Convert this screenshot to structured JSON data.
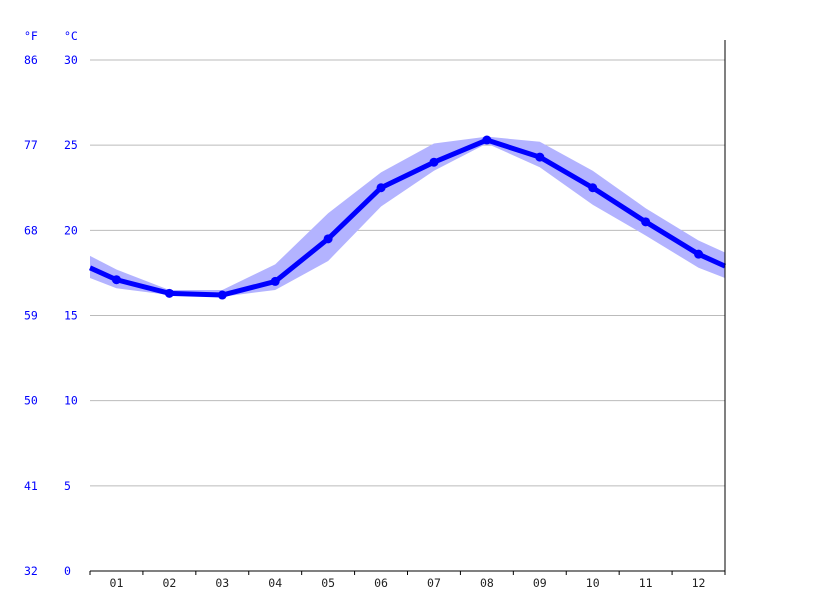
{
  "chart_data": {
    "type": "line",
    "title": "",
    "xlabel": "",
    "ylabel": "",
    "y_units": {
      "left": "°F",
      "right": "°C"
    },
    "categories": [
      "01",
      "02",
      "03",
      "04",
      "05",
      "06",
      "07",
      "08",
      "09",
      "10",
      "11",
      "12"
    ],
    "y_ticks_c": [
      0,
      5,
      10,
      15,
      20,
      25,
      30
    ],
    "y_ticks_f": [
      "32",
      "41",
      "50",
      "59",
      "68",
      "77",
      "86"
    ],
    "ylim": [
      0,
      30
    ],
    "grid": true,
    "colors": {
      "line": "#0000ff",
      "band": "#b3b3ff",
      "grid": "#bbbbbb",
      "axis": "#000000",
      "y_labels": "#0000ff"
    },
    "series": [
      {
        "values": [
          17.1,
          16.3,
          16.2,
          17.0,
          19.5,
          22.5,
          24.0,
          25.3,
          24.3,
          22.5,
          20.5,
          18.6
        ]
      }
    ],
    "band_upper": [
      17.7,
      16.5,
      16.5,
      18.0,
      21.0,
      23.4,
      25.1,
      25.5,
      25.2,
      23.5,
      21.3,
      19.4
    ],
    "band_lower": [
      16.6,
      16.2,
      16.1,
      16.5,
      18.2,
      21.4,
      23.5,
      25.1,
      23.7,
      21.5,
      19.7,
      17.8
    ],
    "edge_values": {
      "start": 17.8,
      "end": 17.9
    },
    "edge_band_upper": {
      "start": 18.5,
      "end": 18.7
    },
    "edge_band_lower": {
      "start": 17.2,
      "end": 17.2
    }
  }
}
